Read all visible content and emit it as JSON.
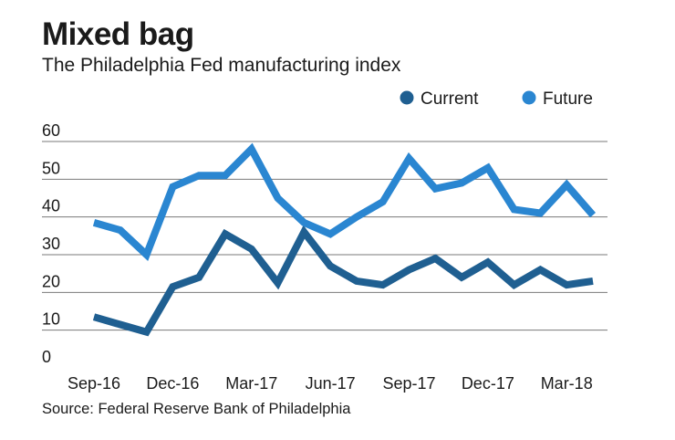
{
  "colors": {
    "current": "#1f5f91",
    "future": "#2a86d1",
    "grid": "#7a7a7a",
    "text": "#1a1a1a"
  },
  "chart_data": {
    "type": "line",
    "title": "Mixed bag",
    "subtitle": "The Philadelphia Fed manufacturing index",
    "source": "Source: Federal Reserve Bank of Philadelphia",
    "xlabel": "",
    "ylabel": "",
    "ylim": [
      0,
      60
    ],
    "yticks": [
      0,
      10,
      20,
      30,
      40,
      50,
      60
    ],
    "grid": true,
    "legend_position": "top-right",
    "x": [
      "Sep-16",
      "Oct-16",
      "Nov-16",
      "Dec-16",
      "Jan-17",
      "Feb-17",
      "Mar-17",
      "Apr-17",
      "May-17",
      "Jun-17",
      "Jul-17",
      "Aug-17",
      "Sep-17",
      "Oct-17",
      "Nov-17",
      "Dec-17",
      "Jan-18",
      "Feb-18",
      "Mar-18",
      "Apr-18"
    ],
    "xtick_labels": [
      "Sep-16",
      "Dec-16",
      "Mar-17",
      "Jun-17",
      "Sep-17",
      "Dec-17",
      "Mar-18"
    ],
    "xtick_indices": [
      0,
      3,
      6,
      9,
      12,
      15,
      18
    ],
    "series": [
      {
        "name": "Current",
        "color_key": "current",
        "values": [
          13.5,
          11.5,
          9.5,
          21.5,
          24,
          35.5,
          31.5,
          22.5,
          36,
          27,
          23,
          22,
          26,
          29,
          24,
          28,
          22,
          26,
          22,
          23
        ]
      },
      {
        "name": "Future",
        "color_key": "future",
        "values": [
          38.5,
          36.5,
          30,
          48,
          51,
          51,
          58,
          45,
          38.5,
          35.5,
          40,
          44,
          55.5,
          47.5,
          49,
          53,
          42,
          41,
          48.5,
          40.5
        ]
      }
    ]
  }
}
